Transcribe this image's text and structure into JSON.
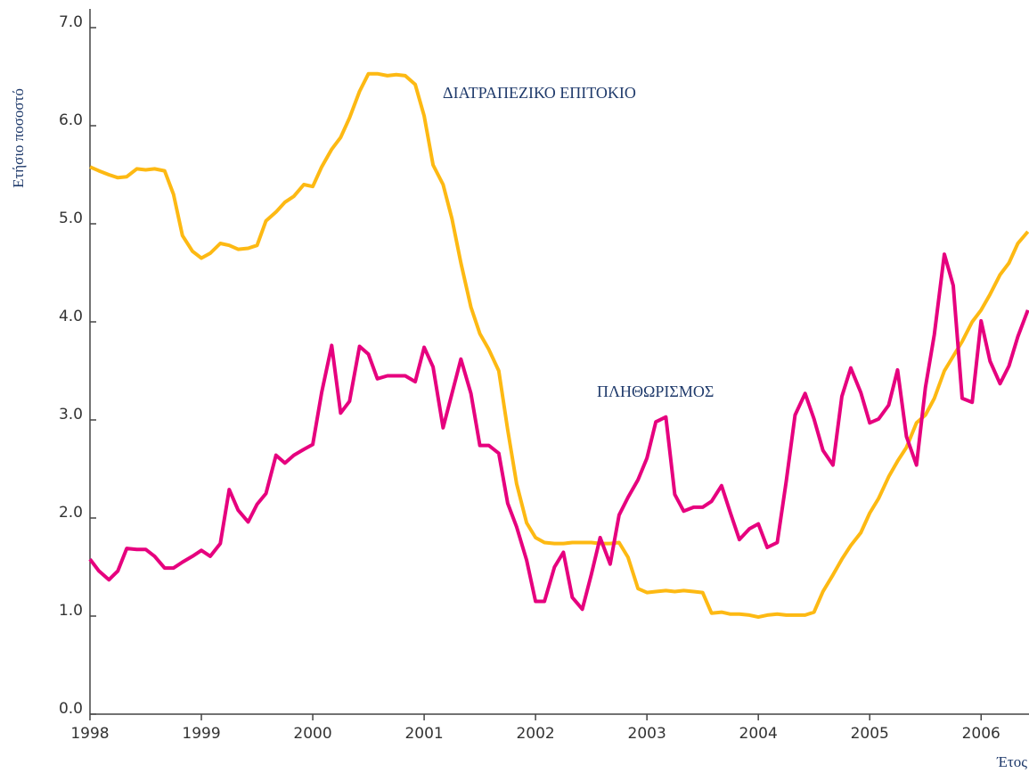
{
  "chart_data": {
    "type": "line",
    "ylabel": "Ετήσιο ποσοστό",
    "xlabel": "Έτος",
    "annotations": [
      "ΔΙΑΤΡΑΠΕΖΙΚΟ ΕΠΙΤΟΚΙΟ",
      "ΠΛΗΘΩΡΙΣΜΟΣ"
    ],
    "xlim": [
      1998,
      2006.43
    ],
    "xticks": [
      1998,
      1999,
      2000,
      2001,
      2002,
      2003,
      2004,
      2005,
      2006
    ],
    "ylim": [
      0,
      7
    ],
    "yticks": [
      {
        "value": 0,
        "label": "0.0"
      },
      {
        "value": 1,
        "label": "1.0"
      },
      {
        "value": 2,
        "label": "2.0"
      },
      {
        "value": 3,
        "label": "3.0"
      },
      {
        "value": 4,
        "label": "4.0"
      },
      {
        "value": 5,
        "label": "5.0"
      },
      {
        "value": 6,
        "label": "6.0"
      },
      {
        "value": 7,
        "label": "7.0"
      }
    ],
    "x": [
      1998,
      1998.08,
      1998.17,
      1998.25,
      1998.33,
      1998.42,
      1998.5,
      1998.58,
      1998.67,
      1998.75,
      1998.83,
      1998.92,
      1999,
      1999.08,
      1999.17,
      1999.25,
      1999.33,
      1999.42,
      1999.5,
      1999.58,
      1999.67,
      1999.75,
      1999.83,
      1999.92,
      2000,
      2000.08,
      2000.17,
      2000.25,
      2000.33,
      2000.42,
      2000.5,
      2000.58,
      2000.67,
      2000.75,
      2000.83,
      2000.92,
      2001,
      2001.08,
      2001.17,
      2001.25,
      2001.33,
      2001.42,
      2001.5,
      2001.58,
      2001.67,
      2001.75,
      2001.83,
      2001.92,
      2002,
      2002.08,
      2002.17,
      2002.25,
      2002.33,
      2002.42,
      2002.5,
      2002.58,
      2002.67,
      2002.75,
      2002.83,
      2002.92,
      2003,
      2003.08,
      2003.17,
      2003.25,
      2003.33,
      2003.42,
      2003.5,
      2003.58,
      2003.67,
      2003.75,
      2003.83,
      2003.92,
      2004,
      2004.08,
      2004.17,
      2004.25,
      2004.33,
      2004.42,
      2004.5,
      2004.58,
      2004.67,
      2004.75,
      2004.83,
      2004.92,
      2005,
      2005.08,
      2005.17,
      2005.25,
      2005.33,
      2005.42,
      2005.5,
      2005.58,
      2005.67,
      2005.75,
      2005.83,
      2005.92,
      2006,
      2006.08,
      2006.17,
      2006.25,
      2006.33,
      2006.42
    ],
    "series": [
      {
        "color": "#fdb913",
        "values": [
          5.58,
          5.54,
          5.5,
          5.47,
          5.48,
          5.56,
          5.55,
          5.56,
          5.54,
          5.3,
          4.88,
          4.72,
          4.65,
          4.7,
          4.8,
          4.78,
          4.74,
          4.75,
          4.78,
          5.03,
          5.12,
          5.22,
          5.28,
          5.4,
          5.38,
          5.58,
          5.76,
          5.88,
          6.08,
          6.35,
          6.53,
          6.53,
          6.51,
          6.52,
          6.51,
          6.42,
          6.1,
          5.6,
          5.4,
          5.05,
          4.6,
          4.15,
          3.88,
          3.72,
          3.5,
          2.9,
          2.35,
          1.95,
          1.8,
          1.75,
          1.74,
          1.74,
          1.75,
          1.75,
          1.75,
          1.74,
          1.74,
          1.75,
          1.6,
          1.28,
          1.24,
          1.25,
          1.26,
          1.25,
          1.26,
          1.25,
          1.24,
          1.03,
          1.04,
          1.02,
          1.02,
          1.01,
          0.99,
          1.01,
          1.02,
          1.01,
          1.01,
          1.01,
          1.04,
          1.25,
          1.42,
          1.58,
          1.72,
          1.85,
          2.05,
          2.2,
          2.42,
          2.58,
          2.72,
          2.97,
          3.05,
          3.22,
          3.5,
          3.65,
          3.8,
          4.0,
          4.12,
          4.28,
          4.48,
          4.6,
          4.8,
          4.92
        ]
      },
      {
        "color": "#e6007e",
        "values": [
          1.58,
          1.46,
          1.37,
          1.46,
          1.69,
          1.68,
          1.68,
          1.61,
          1.49,
          1.49,
          1.55,
          1.61,
          1.67,
          1.61,
          1.74,
          2.29,
          2.08,
          1.96,
          2.14,
          2.25,
          2.64,
          2.56,
          2.64,
          2.7,
          2.75,
          3.28,
          3.76,
          3.07,
          3.19,
          3.75,
          3.67,
          3.42,
          3.45,
          3.45,
          3.45,
          3.39,
          3.74,
          3.54,
          2.92,
          3.27,
          3.62,
          3.27,
          2.74,
          2.74,
          2.66,
          2.15,
          1.91,
          1.57,
          1.15,
          1.15,
          1.5,
          1.65,
          1.19,
          1.07,
          1.42,
          1.8,
          1.53,
          2.03,
          2.21,
          2.39,
          2.61,
          2.98,
          3.03,
          2.24,
          2.07,
          2.11,
          2.11,
          2.17,
          2.33,
          2.05,
          1.78,
          1.89,
          1.94,
          1.7,
          1.75,
          2.37,
          3.05,
          3.27,
          3.01,
          2.69,
          2.54,
          3.24,
          3.53,
          3.28,
          2.97,
          3.01,
          3.15,
          3.51,
          2.83,
          2.54,
          3.33,
          3.87,
          4.69,
          4.37,
          3.22,
          3.18,
          4.01,
          3.6,
          3.37,
          3.55,
          3.85,
          4.12
        ]
      }
    ]
  }
}
